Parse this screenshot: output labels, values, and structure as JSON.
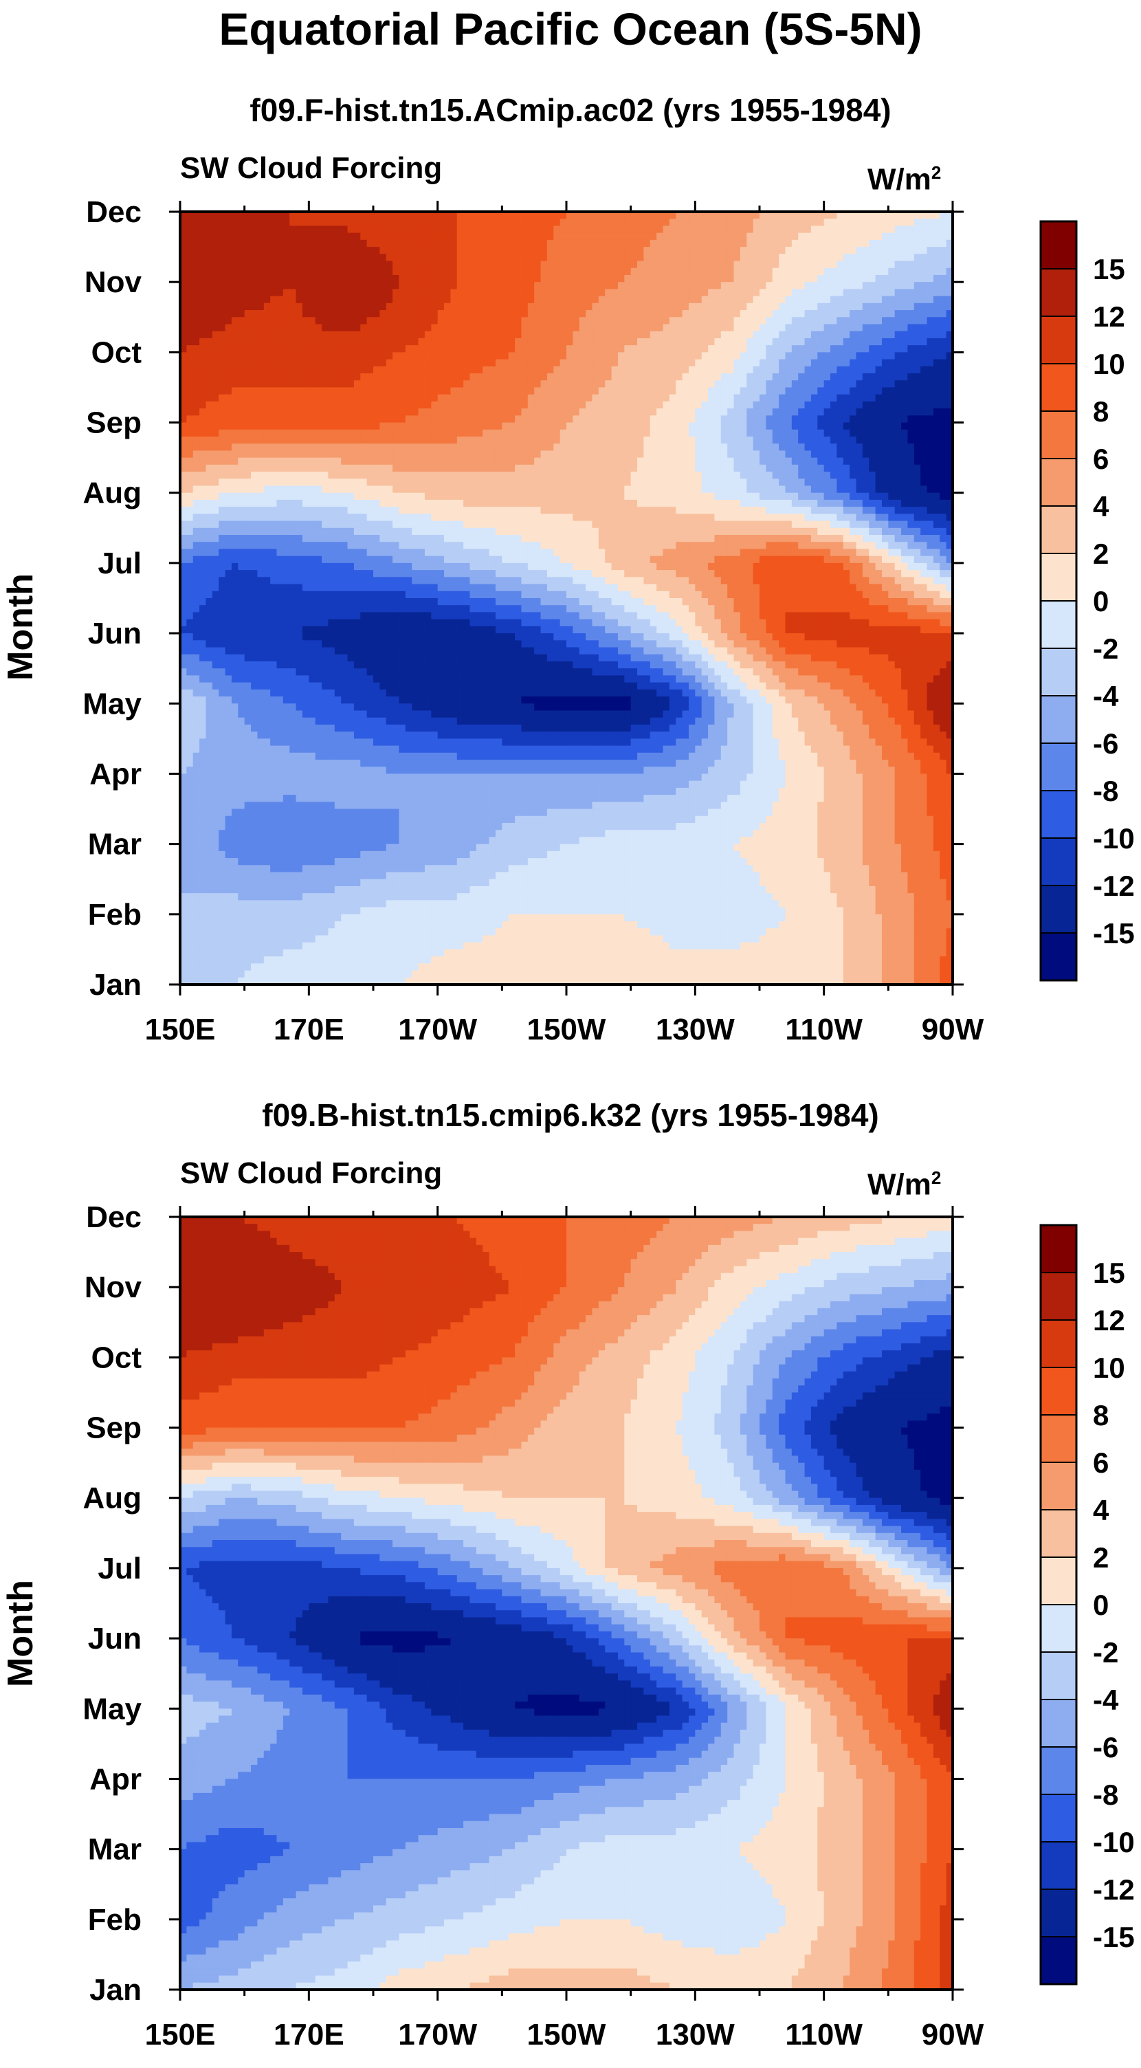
{
  "chart_data": {
    "title": "Equatorial Pacific Ocean (5S-5N)",
    "colorbar": {
      "labels": [
        "15",
        "12",
        "10",
        "8",
        "6",
        "4",
        "2",
        "0",
        "-2",
        "-4",
        "-6",
        "-8",
        "-10",
        "-12",
        "-15"
      ],
      "colors": [
        "#800000",
        "#b1200b",
        "#d83a0f",
        "#f1561c",
        "#f3773f",
        "#f59b6d",
        "#f8c09f",
        "#fde3cd",
        "#d6e6fb",
        "#b6cdf6",
        "#8dadf0",
        "#5d86ea",
        "#2e5ce2",
        "#143bbe",
        "#082595",
        "#000c7e"
      ]
    },
    "panels": [
      {
        "type": "heatmap",
        "title": "f09.F-hist.tn15.ACmip.ac02 (yrs 1955-1984)",
        "left_label": "SW Cloud Forcing",
        "right_label": "W/m",
        "right_label_sup": "2",
        "ylabel": "Month",
        "months": [
          "Dec",
          "Nov",
          "Oct",
          "Sep",
          "Aug",
          "Jul",
          "Jun",
          "May",
          "Apr",
          "Mar",
          "Feb",
          "Jan"
        ],
        "lon_ticks": [
          "150E",
          "170E",
          "170W",
          "150W",
          "130W",
          "110W",
          "90W"
        ],
        "lon_range": [
          150,
          270
        ],
        "values": [
          [
            14,
            13,
            12,
            11,
            10,
            10,
            9,
            8,
            7,
            6,
            5,
            3,
            2,
            1,
            0
          ],
          [
            15,
            13,
            12,
            15,
            12,
            10,
            9,
            7,
            6,
            5,
            4,
            1,
            -1,
            -3,
            -5
          ],
          [
            12,
            11,
            11,
            11,
            10,
            9,
            8,
            6,
            4,
            3,
            1,
            -4,
            -7,
            -10,
            -12
          ],
          [
            10,
            9,
            9,
            9,
            8,
            7,
            6,
            4,
            3,
            1,
            -3,
            -8,
            -12,
            -15,
            -16
          ],
          [
            2,
            0,
            -1,
            0,
            2,
            3,
            3,
            3,
            2,
            1,
            -1,
            -4,
            -8,
            -14,
            -16
          ],
          [
            -8,
            -10,
            -9,
            -8,
            -6,
            -4,
            -2,
            0,
            3,
            5,
            7,
            10,
            8,
            1,
            -6
          ],
          [
            -10,
            -12,
            -12,
            -13,
            -15,
            -14,
            -12,
            -9,
            -5,
            -1,
            5,
            10,
            11,
            11,
            10
          ],
          [
            -2,
            -6,
            -8,
            -10,
            -12,
            -14,
            -15,
            -16,
            -16,
            -12,
            -4,
            2,
            5,
            9,
            15
          ],
          [
            -4,
            -5,
            -5,
            -5,
            -6,
            -6,
            -6,
            -6,
            -6,
            -5,
            -3,
            0,
            3,
            6,
            10
          ],
          [
            -4,
            -7,
            -8,
            -7,
            -6,
            -5,
            -3,
            -2,
            -1,
            -1,
            0,
            1,
            3,
            6,
            9
          ],
          [
            -4,
            -3,
            -3,
            -2,
            -1,
            -1,
            0,
            0,
            0,
            -1,
            -1,
            0,
            2,
            5,
            8
          ],
          [
            -3,
            -2,
            -1,
            -1,
            0,
            1,
            1,
            1,
            2,
            1,
            1,
            1,
            2,
            5,
            9
          ]
        ]
      },
      {
        "type": "heatmap",
        "title": "f09.B-hist.tn15.cmip6.k32 (yrs 1955-1984)",
        "left_label": "SW Cloud Forcing",
        "right_label": "W/m",
        "right_label_sup": "2",
        "ylabel": "Month",
        "months": [
          "Dec",
          "Nov",
          "Oct",
          "Sep",
          "Aug",
          "Jul",
          "Jun",
          "May",
          "Apr",
          "Mar",
          "Feb",
          "Jan"
        ],
        "lon_ticks": [
          "150E",
          "170E",
          "170W",
          "150W",
          "130W",
          "110W",
          "90W"
        ],
        "lon_range": [
          150,
          270
        ],
        "values": [
          [
            12,
            12,
            11,
            11,
            11,
            10,
            9,
            8,
            7,
            6,
            5,
            4,
            3,
            2,
            1
          ],
          [
            15,
            15,
            13,
            12,
            12,
            11,
            10,
            8,
            6,
            4,
            1,
            -1,
            -3,
            -4,
            -5
          ],
          [
            12,
            11,
            11,
            11,
            10,
            9,
            8,
            5,
            3,
            1,
            -2,
            -6,
            -9,
            -11,
            -13
          ],
          [
            9,
            8,
            8,
            8,
            8,
            7,
            5,
            3,
            2,
            0,
            -3,
            -9,
            -13,
            -15,
            -16
          ],
          [
            -2,
            -4,
            -3,
            -1,
            0,
            1,
            2,
            2,
            2,
            1,
            -1,
            -5,
            -10,
            -14,
            -16
          ],
          [
            -10,
            -11,
            -11,
            -10,
            -9,
            -7,
            -4,
            -1,
            3,
            5,
            7,
            8,
            6,
            0,
            -6
          ],
          [
            -8,
            -10,
            -12,
            -15,
            -16,
            -15,
            -14,
            -12,
            -8,
            -3,
            3,
            8,
            9,
            10,
            10
          ],
          [
            -3,
            -4,
            -6,
            -8,
            -11,
            -13,
            -15,
            -16,
            -15,
            -12,
            -6,
            0,
            5,
            9,
            14
          ],
          [
            -5,
            -6,
            -7,
            -8,
            -8,
            -8,
            -8,
            -7,
            -6,
            -5,
            -3,
            0,
            3,
            6,
            10
          ],
          [
            -8,
            -9,
            -8,
            -7,
            -6,
            -5,
            -4,
            -2,
            -1,
            -1,
            0,
            1,
            3,
            6,
            10
          ],
          [
            -9,
            -7,
            -5,
            -4,
            -3,
            -2,
            -1,
            0,
            0,
            -1,
            -2,
            0,
            3,
            6,
            11
          ],
          [
            -4,
            -3,
            -2,
            -1,
            1,
            2,
            3,
            3,
            3,
            2,
            2,
            2,
            4,
            7,
            11
          ]
        ]
      }
    ]
  }
}
